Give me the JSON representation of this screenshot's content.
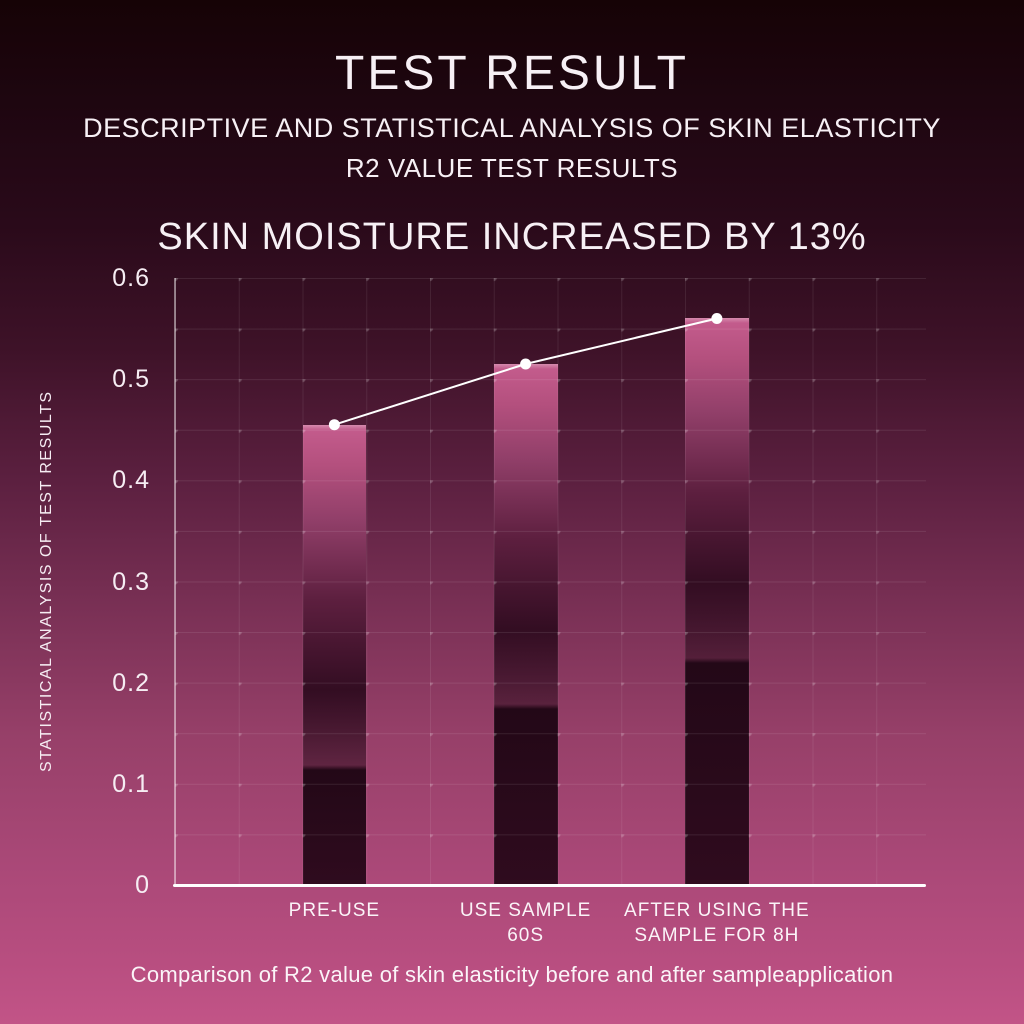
{
  "header": {
    "title": "TEST RESULT",
    "subtitle_line1": "DESCRIPTIVE AND STATISTICAL ANALYSIS OF SKIN ELASTICITY",
    "subtitle_line2": "R2 VALUE TEST RESULTS"
  },
  "chart_data": {
    "type": "bar",
    "title": "SKIN MOISTURE INCREASED BY 13%",
    "ylabel": "STATISTICAL ANALYSIS OF TEST RESULTS",
    "xlabel": "",
    "categories": [
      {
        "lines": [
          "PRE-USE"
        ]
      },
      {
        "lines": [
          "USE SAMPLE",
          "60S"
        ]
      },
      {
        "lines": [
          "AFTER USING THE",
          "SAMPLE FOR 8H"
        ]
      }
    ],
    "values": [
      0.455,
      0.515,
      0.56
    ],
    "line_overlay": {
      "type": "line",
      "values": [
        0.455,
        0.515,
        0.56
      ],
      "color": "#ffffff",
      "marker": "circle"
    },
    "ylim": [
      0,
      0.6
    ],
    "ytick_labels": [
      "0",
      "0.1",
      "0.2",
      "0.3",
      "0.4",
      "0.5",
      "0.6"
    ],
    "grid": "on",
    "legend_position": "none",
    "colors": {
      "bar_top": "#c55d8e",
      "bar_bottom": "#2f0b1e",
      "axis": "#ffffff",
      "grid": "rgba(255,255,255,0.09)",
      "text": "#f7f0f5",
      "background_top": "#160306",
      "background_bottom": "#c25487"
    }
  },
  "caption": "Comparison of R2 value of skin elasticity before and after sampleapplication"
}
